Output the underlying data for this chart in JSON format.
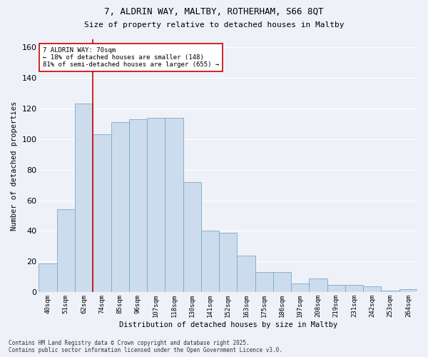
{
  "title_line1": "7, ALDRIN WAY, MALTBY, ROTHERHAM, S66 8QT",
  "title_line2": "Size of property relative to detached houses in Maltby",
  "xlabel": "Distribution of detached houses by size in Maltby",
  "ylabel": "Number of detached properties",
  "categories": [
    "40sqm",
    "51sqm",
    "62sqm",
    "74sqm",
    "85sqm",
    "96sqm",
    "107sqm",
    "118sqm",
    "130sqm",
    "141sqm",
    "152sqm",
    "163sqm",
    "175sqm",
    "186sqm",
    "197sqm",
    "208sqm",
    "219sqm",
    "231sqm",
    "242sqm",
    "253sqm",
    "264sqm"
  ],
  "bar_heights": [
    19,
    54,
    123,
    103,
    111,
    113,
    114,
    114,
    72,
    40,
    39,
    24,
    13,
    13,
    6,
    9,
    5,
    5,
    4,
    1,
    2
  ],
  "bar_color": "#ccdcec",
  "bar_edge_color": "#7aaac8",
  "red_line_x": 2.5,
  "annotation_text": "7 ALDRIN WAY: 70sqm\n← 18% of detached houses are smaller (148)\n81% of semi-detached houses are larger (655) →",
  "annotation_box_color": "#ffffff",
  "annotation_box_edge": "#cc0000",
  "ylim": [
    0,
    165
  ],
  "yticks": [
    0,
    20,
    40,
    60,
    80,
    100,
    120,
    140,
    160
  ],
  "footer_line1": "Contains HM Land Registry data © Crown copyright and database right 2025.",
  "footer_line2": "Contains public sector information licensed under the Open Government Licence v3.0.",
  "background_color": "#eef2f8",
  "grid_color": "#ffffff"
}
